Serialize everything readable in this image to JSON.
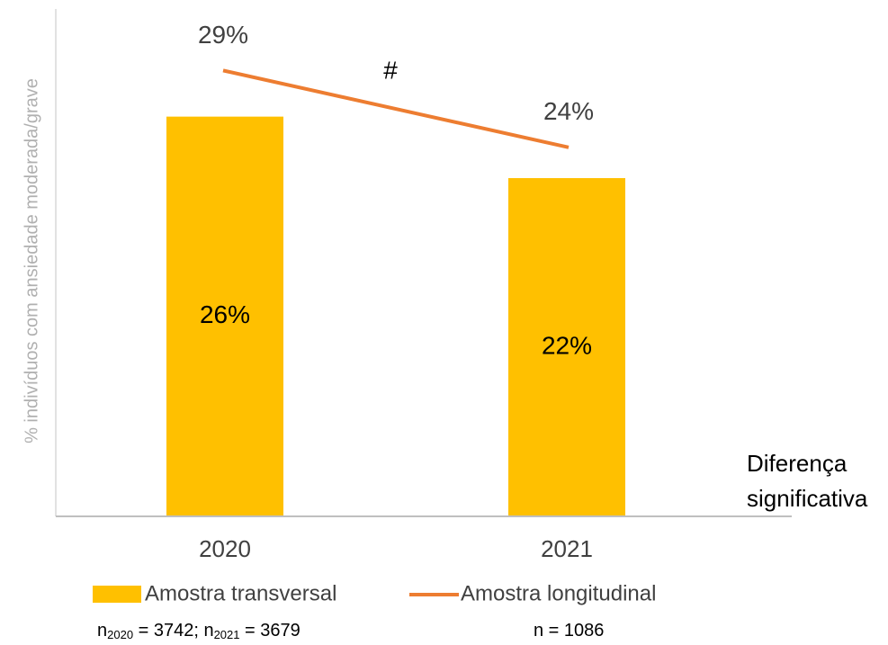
{
  "chart_data": {
    "type": "bar",
    "y_label": "% indivíduos com ansiedade moderada/grave",
    "categories": [
      "2020",
      "2021"
    ],
    "ylim": [
      0,
      33
    ],
    "series": [
      {
        "name": "Amostra transversal",
        "type": "bar",
        "color": "#FFC000",
        "values": [
          26,
          22
        ],
        "value_labels": [
          "26%",
          "22%"
        ]
      },
      {
        "name": "Amostra longitudinal",
        "type": "line",
        "color": "#ED7D31",
        "values": [
          29,
          24
        ],
        "value_labels": [
          "29%",
          "24%"
        ]
      }
    ],
    "annotations": [
      "#",
      "Diferença",
      "significativa"
    ],
    "notes": [
      [
        "n",
        "2020",
        " = 3742; n",
        "2021",
        " = 3679"
      ],
      [
        "n = 1086"
      ]
    ]
  }
}
